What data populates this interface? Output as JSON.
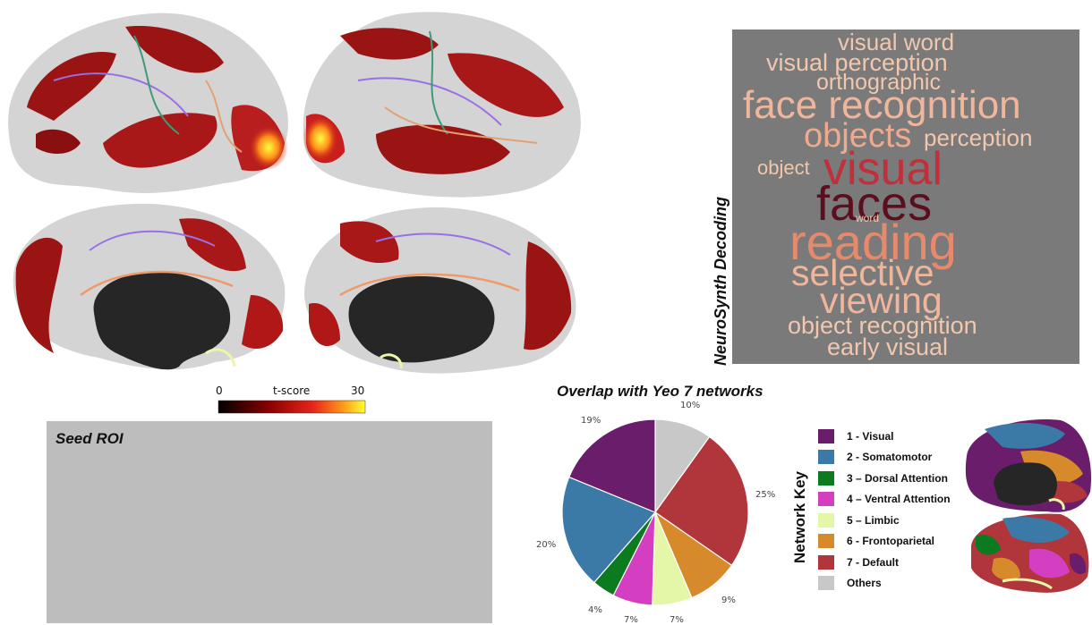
{
  "colorbar": {
    "min_label": "0",
    "label": "t-score",
    "max_label": "30"
  },
  "neurosynth": {
    "side_title": "NeuroSynth Decoding",
    "words": [
      {
        "text": "visual word",
        "weight": 0.4,
        "color": "#f2c7ad"
      },
      {
        "text": "visual perception",
        "weight": 0.42,
        "color": "#f2c7ad"
      },
      {
        "text": "orthographic",
        "weight": 0.4,
        "color": "#f2c7ad"
      },
      {
        "text": "face recognition",
        "weight": 0.7,
        "color": "#f0b69c"
      },
      {
        "text": "objects",
        "weight": 0.62,
        "color": "#eea98f"
      },
      {
        "text": "perception",
        "weight": 0.42,
        "color": "#f2c7ad"
      },
      {
        "text": "object",
        "weight": 0.36,
        "color": "#f2c7ad"
      },
      {
        "text": "visual",
        "weight": 0.85,
        "color": "#c0303a"
      },
      {
        "text": "faces",
        "weight": 1.0,
        "color": "#5a0e1e"
      },
      {
        "text": "word",
        "weight": 0.2,
        "color": "#f2c7ad"
      },
      {
        "text": "reading",
        "weight": 0.92,
        "color": "#e58a6c"
      },
      {
        "text": "selective",
        "weight": 0.66,
        "color": "#f0b69c"
      },
      {
        "text": "viewing",
        "weight": 0.66,
        "color": "#f0b69c"
      },
      {
        "text": "object recognition",
        "weight": 0.44,
        "color": "#f2c7ad"
      },
      {
        "text": "early visual",
        "weight": 0.42,
        "color": "#f2c7ad"
      }
    ]
  },
  "seed": {
    "title": "Seed ROI"
  },
  "chart_data": {
    "type": "pie",
    "title": "Overlap with Yeo 7 networks",
    "slices": [
      {
        "label": "Others",
        "value": 10,
        "color": "#c8c8c8",
        "pct_label": "10%"
      },
      {
        "label": "7 - Default",
        "value": 25,
        "color": "#b0363b",
        "pct_label": "25%"
      },
      {
        "label": "6 - Frontoparietal",
        "value": 9,
        "color": "#d68a2b",
        "pct_label": "9%"
      },
      {
        "label": "5 – Limbic",
        "value": 7,
        "color": "#e4f7a8",
        "pct_label": "7%"
      },
      {
        "label": "4 – Ventral Attention",
        "value": 7,
        "color": "#d43ec0",
        "pct_label": "7%"
      },
      {
        "label": "3 – Dorsal Attention",
        "value": 4,
        "color": "#0c7a1e",
        "pct_label": "4%"
      },
      {
        "label": "2 - Somatomotor",
        "value": 20,
        "color": "#3b7aa6",
        "pct_label": "20%"
      },
      {
        "label": "1 - Visual",
        "value": 19,
        "color": "#6a1d6a",
        "pct_label": "19%"
      }
    ]
  },
  "network_key": {
    "title": "Network Key",
    "items": [
      {
        "label": "1 - Visual",
        "color": "#6a1d6a"
      },
      {
        "label": "2 - Somatomotor",
        "color": "#3b7aa6"
      },
      {
        "label": "3 – Dorsal Attention",
        "color": "#0c7a1e"
      },
      {
        "label": "4 – Ventral Attention",
        "color": "#d43ec0"
      },
      {
        "label": "5 – Limbic",
        "color": "#e4f7a8"
      },
      {
        "label": "6 - Frontoparietal",
        "color": "#d68a2b"
      },
      {
        "label": "7 - Default",
        "color": "#b0363b"
      },
      {
        "label": "Others",
        "color": "#c8c8c8"
      }
    ]
  }
}
